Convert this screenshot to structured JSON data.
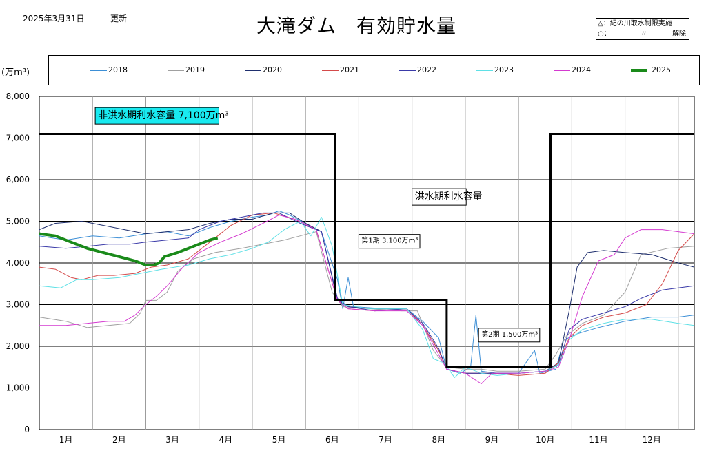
{
  "header": {
    "update_date": "2025年3月31日",
    "update_word": "更新",
    "title": "大滝ダム　有効貯水量"
  },
  "note": {
    "line1": "△：紀の川取水制限実施",
    "line2_symbol": "○：",
    "line2_ditto": "〃",
    "line2_word": "解除"
  },
  "unit": "(万m³)",
  "chart_data": {
    "type": "line",
    "title": "大滝ダム　有効貯水量",
    "ylabel": "(万m³)",
    "ylim": [
      0,
      8000
    ],
    "yticks": [
      "0",
      "1,000",
      "2,000",
      "3,000",
      "4,000",
      "5,000",
      "6,000",
      "7,000",
      "8,000"
    ],
    "xlim": [
      0,
      12.3
    ],
    "x_unit": "month",
    "xticks": [
      "1月",
      "2月",
      "3月",
      "4月",
      "5月",
      "6月",
      "7月",
      "8月",
      "9月",
      "10月",
      "11月",
      "12月"
    ],
    "grid": true,
    "legend_position": "top",
    "annotations": [
      {
        "text": "非洪水期利水容量 7,100万m³",
        "x": 1.05,
        "y": 7700,
        "style": "cyan-box"
      },
      {
        "text": "洪水期利水容量",
        "x": 7.0,
        "y": 5750,
        "style": "box"
      },
      {
        "text": "第1期  3,100万m³",
        "x": 6.0,
        "y": 4650,
        "style": "box"
      },
      {
        "text": "第2期  1,500万m³",
        "x": 8.25,
        "y": 2400,
        "style": "box"
      }
    ],
    "capacity_line": {
      "color": "#000000",
      "points": [
        [
          0,
          7100
        ],
        [
          5.55,
          7100
        ],
        [
          5.55,
          3100
        ],
        [
          7.65,
          3100
        ],
        [
          7.65,
          1500
        ],
        [
          9.6,
          1500
        ],
        [
          9.6,
          7100
        ],
        [
          12.3,
          7100
        ]
      ]
    },
    "series": [
      {
        "name": "2018",
        "color": "#3d8fd6",
        "width": 1,
        "points": [
          [
            0,
            4650
          ],
          [
            0.5,
            4550
          ],
          [
            1.0,
            4650
          ],
          [
            1.5,
            4600
          ],
          [
            2.0,
            4700
          ],
          [
            2.4,
            4750
          ],
          [
            2.8,
            4650
          ],
          [
            3.2,
            4850
          ],
          [
            3.6,
            5000
          ],
          [
            4.0,
            5100
          ],
          [
            4.3,
            5150
          ],
          [
            4.5,
            5250
          ],
          [
            4.7,
            5150
          ],
          [
            5.0,
            4950
          ],
          [
            5.3,
            4750
          ],
          [
            5.6,
            3600
          ],
          [
            5.7,
            2900
          ],
          [
            5.8,
            3650
          ],
          [
            5.9,
            2950
          ],
          [
            6.5,
            2900
          ],
          [
            6.9,
            2900
          ],
          [
            7.2,
            2600
          ],
          [
            7.5,
            2200
          ],
          [
            7.65,
            1450
          ],
          [
            7.9,
            1350
          ],
          [
            8.1,
            1500
          ],
          [
            8.2,
            2750
          ],
          [
            8.3,
            1400
          ],
          [
            8.6,
            1350
          ],
          [
            9.0,
            1350
          ],
          [
            9.3,
            1900
          ],
          [
            9.4,
            1350
          ],
          [
            9.7,
            1450
          ],
          [
            9.85,
            2150
          ],
          [
            10.1,
            2300
          ],
          [
            10.5,
            2450
          ],
          [
            11.0,
            2600
          ],
          [
            11.5,
            2700
          ],
          [
            12.0,
            2700
          ],
          [
            12.3,
            2750
          ]
        ]
      },
      {
        "name": "2019",
        "color": "#a0a0a0",
        "width": 1,
        "points": [
          [
            0,
            2700
          ],
          [
            0.5,
            2600
          ],
          [
            0.9,
            2450
          ],
          [
            1.3,
            2500
          ],
          [
            1.7,
            2550
          ],
          [
            1.9,
            2800
          ],
          [
            2.0,
            3100
          ],
          [
            2.2,
            3100
          ],
          [
            2.4,
            3300
          ],
          [
            2.6,
            3800
          ],
          [
            2.9,
            4100
          ],
          [
            3.3,
            4250
          ],
          [
            3.8,
            4350
          ],
          [
            4.2,
            4450
          ],
          [
            4.6,
            4550
          ],
          [
            4.9,
            4650
          ],
          [
            5.2,
            4750
          ],
          [
            5.5,
            3300
          ],
          [
            5.7,
            2950
          ],
          [
            6.2,
            2900
          ],
          [
            6.8,
            2850
          ],
          [
            7.1,
            2850
          ],
          [
            7.4,
            1900
          ],
          [
            7.65,
            1500
          ],
          [
            8.0,
            1450
          ],
          [
            8.3,
            1450
          ],
          [
            8.6,
            1400
          ],
          [
            9.0,
            1400
          ],
          [
            9.5,
            1450
          ],
          [
            9.7,
            1800
          ],
          [
            9.9,
            2250
          ],
          [
            10.2,
            2550
          ],
          [
            10.6,
            2750
          ],
          [
            11.0,
            3300
          ],
          [
            11.3,
            4200
          ],
          [
            11.8,
            4350
          ],
          [
            12.3,
            4400
          ]
        ]
      },
      {
        "name": "2020",
        "color": "#1f2f6e",
        "width": 1,
        "points": [
          [
            0,
            4800
          ],
          [
            0.3,
            4950
          ],
          [
            0.8,
            5000
          ],
          [
            1.2,
            4900
          ],
          [
            1.6,
            4800
          ],
          [
            2.0,
            4700
          ],
          [
            2.4,
            4750
          ],
          [
            2.8,
            4800
          ],
          [
            3.2,
            4950
          ],
          [
            3.6,
            5050
          ],
          [
            4.0,
            5050
          ],
          [
            4.4,
            5200
          ],
          [
            4.7,
            5200
          ],
          [
            5.0,
            4950
          ],
          [
            5.3,
            4750
          ],
          [
            5.6,
            3100
          ],
          [
            5.8,
            2950
          ],
          [
            6.3,
            2900
          ],
          [
            6.9,
            2900
          ],
          [
            7.2,
            2500
          ],
          [
            7.5,
            1900
          ],
          [
            7.65,
            1450
          ],
          [
            8.0,
            1350
          ],
          [
            8.5,
            1350
          ],
          [
            9.0,
            1350
          ],
          [
            9.5,
            1400
          ],
          [
            9.75,
            1600
          ],
          [
            9.95,
            2850
          ],
          [
            10.1,
            3900
          ],
          [
            10.3,
            4250
          ],
          [
            10.6,
            4300
          ],
          [
            11.0,
            4250
          ],
          [
            11.5,
            4200
          ],
          [
            12.0,
            4000
          ],
          [
            12.3,
            3900
          ]
        ]
      },
      {
        "name": "2021",
        "color": "#d44a4a",
        "width": 1,
        "points": [
          [
            0,
            3900
          ],
          [
            0.3,
            3850
          ],
          [
            0.6,
            3650
          ],
          [
            0.8,
            3600
          ],
          [
            1.1,
            3700
          ],
          [
            1.4,
            3700
          ],
          [
            1.8,
            3750
          ],
          [
            2.1,
            3900
          ],
          [
            2.4,
            3950
          ],
          [
            2.8,
            4100
          ],
          [
            3.2,
            4500
          ],
          [
            3.6,
            4900
          ],
          [
            4.0,
            5150
          ],
          [
            4.4,
            5200
          ],
          [
            4.8,
            5050
          ],
          [
            5.2,
            4800
          ],
          [
            5.6,
            3100
          ],
          [
            5.8,
            2900
          ],
          [
            6.3,
            2850
          ],
          [
            6.9,
            2900
          ],
          [
            7.2,
            2500
          ],
          [
            7.5,
            1900
          ],
          [
            7.65,
            1450
          ],
          [
            8.0,
            1350
          ],
          [
            8.5,
            1350
          ],
          [
            9.0,
            1300
          ],
          [
            9.5,
            1350
          ],
          [
            9.75,
            1600
          ],
          [
            9.95,
            2200
          ],
          [
            10.2,
            2500
          ],
          [
            10.6,
            2700
          ],
          [
            11.0,
            2800
          ],
          [
            11.4,
            3000
          ],
          [
            11.7,
            3500
          ],
          [
            12.0,
            4300
          ],
          [
            12.3,
            4700
          ]
        ]
      },
      {
        "name": "2022",
        "color": "#3a3aa8",
        "width": 1,
        "points": [
          [
            0,
            4400
          ],
          [
            0.5,
            4350
          ],
          [
            0.9,
            4400
          ],
          [
            1.3,
            4450
          ],
          [
            1.7,
            4450
          ],
          [
            2.0,
            4500
          ],
          [
            2.4,
            4550
          ],
          [
            2.8,
            4600
          ],
          [
            3.0,
            4800
          ],
          [
            3.4,
            5000
          ],
          [
            3.8,
            5100
          ],
          [
            4.2,
            5200
          ],
          [
            4.5,
            5200
          ],
          [
            4.9,
            4950
          ],
          [
            5.3,
            4750
          ],
          [
            5.6,
            3150
          ],
          [
            5.8,
            2950
          ],
          [
            6.3,
            2850
          ],
          [
            6.9,
            2900
          ],
          [
            7.2,
            2550
          ],
          [
            7.5,
            1950
          ],
          [
            7.65,
            1450
          ],
          [
            8.0,
            1350
          ],
          [
            8.5,
            1350
          ],
          [
            9.0,
            1350
          ],
          [
            9.5,
            1400
          ],
          [
            9.75,
            1550
          ],
          [
            9.95,
            2400
          ],
          [
            10.2,
            2650
          ],
          [
            10.6,
            2800
          ],
          [
            11.0,
            2950
          ],
          [
            11.3,
            3150
          ],
          [
            11.7,
            3350
          ],
          [
            12.0,
            3400
          ],
          [
            12.3,
            3450
          ]
        ]
      },
      {
        "name": "2023",
        "color": "#5fe0e6",
        "width": 1,
        "points": [
          [
            0,
            3450
          ],
          [
            0.4,
            3400
          ],
          [
            0.7,
            3600
          ],
          [
            1.0,
            3600
          ],
          [
            1.5,
            3650
          ],
          [
            1.9,
            3750
          ],
          [
            2.3,
            3850
          ],
          [
            2.8,
            3950
          ],
          [
            3.2,
            4100
          ],
          [
            3.6,
            4200
          ],
          [
            4.0,
            4350
          ],
          [
            4.3,
            4500
          ],
          [
            4.6,
            4800
          ],
          [
            4.9,
            5000
          ],
          [
            5.1,
            4650
          ],
          [
            5.3,
            5100
          ],
          [
            5.5,
            4400
          ],
          [
            5.7,
            3000
          ],
          [
            6.2,
            2900
          ],
          [
            6.9,
            2900
          ],
          [
            7.2,
            2400
          ],
          [
            7.4,
            1700
          ],
          [
            7.6,
            1600
          ],
          [
            7.8,
            1250
          ],
          [
            8.0,
            1500
          ],
          [
            8.3,
            1350
          ],
          [
            8.6,
            1300
          ],
          [
            9.0,
            1350
          ],
          [
            9.5,
            1400
          ],
          [
            9.75,
            1550
          ],
          [
            9.95,
            2150
          ],
          [
            10.2,
            2400
          ],
          [
            10.6,
            2550
          ],
          [
            11.0,
            2650
          ],
          [
            11.5,
            2650
          ],
          [
            12.0,
            2550
          ],
          [
            12.3,
            2500
          ]
        ]
      },
      {
        "name": "2024",
        "color": "#d43ad0",
        "width": 1,
        "points": [
          [
            0,
            2500
          ],
          [
            0.5,
            2500
          ],
          [
            0.9,
            2550
          ],
          [
            1.3,
            2600
          ],
          [
            1.6,
            2600
          ],
          [
            1.8,
            2750
          ],
          [
            2.0,
            3000
          ],
          [
            2.2,
            3200
          ],
          [
            2.4,
            3450
          ],
          [
            2.7,
            3900
          ],
          [
            3.0,
            4250
          ],
          [
            3.4,
            4500
          ],
          [
            3.8,
            4700
          ],
          [
            4.2,
            4950
          ],
          [
            4.5,
            5150
          ],
          [
            4.8,
            5050
          ],
          [
            5.2,
            4800
          ],
          [
            5.6,
            3100
          ],
          [
            5.8,
            2900
          ],
          [
            6.3,
            2850
          ],
          [
            6.9,
            2850
          ],
          [
            7.2,
            2500
          ],
          [
            7.5,
            1800
          ],
          [
            7.65,
            1450
          ],
          [
            8.0,
            1350
          ],
          [
            8.3,
            1100
          ],
          [
            8.5,
            1350
          ],
          [
            9.0,
            1350
          ],
          [
            9.5,
            1400
          ],
          [
            9.75,
            1500
          ],
          [
            9.95,
            2150
          ],
          [
            10.2,
            3200
          ],
          [
            10.5,
            4050
          ],
          [
            10.8,
            4200
          ],
          [
            11.0,
            4600
          ],
          [
            11.3,
            4800
          ],
          [
            11.7,
            4800
          ],
          [
            12.3,
            4700
          ]
        ]
      },
      {
        "name": "2025",
        "color": "#1a8a1a",
        "width": 4,
        "points": [
          [
            0,
            4700
          ],
          [
            0.3,
            4650
          ],
          [
            0.6,
            4500
          ],
          [
            0.9,
            4350
          ],
          [
            1.2,
            4250
          ],
          [
            1.5,
            4150
          ],
          [
            1.8,
            4050
          ],
          [
            2.0,
            3950
          ],
          [
            2.15,
            3950
          ],
          [
            2.25,
            4000
          ],
          [
            2.35,
            4150
          ],
          [
            2.6,
            4250
          ],
          [
            2.8,
            4350
          ],
          [
            3.0,
            4450
          ],
          [
            3.2,
            4550
          ],
          [
            3.35,
            4600
          ]
        ]
      }
    ]
  },
  "legend": [
    {
      "label": "2018",
      "color": "#3d8fd6",
      "width": 1
    },
    {
      "label": "2019",
      "color": "#a0a0a0",
      "width": 1
    },
    {
      "label": "2020",
      "color": "#1f2f6e",
      "width": 1
    },
    {
      "label": "2021",
      "color": "#d44a4a",
      "width": 1
    },
    {
      "label": "2022",
      "color": "#3a3aa8",
      "width": 1
    },
    {
      "label": "2023",
      "color": "#5fe0e6",
      "width": 1
    },
    {
      "label": "2024",
      "color": "#d43ad0",
      "width": 1
    },
    {
      "label": "2025",
      "color": "#1a8a1a",
      "width": 4
    }
  ]
}
